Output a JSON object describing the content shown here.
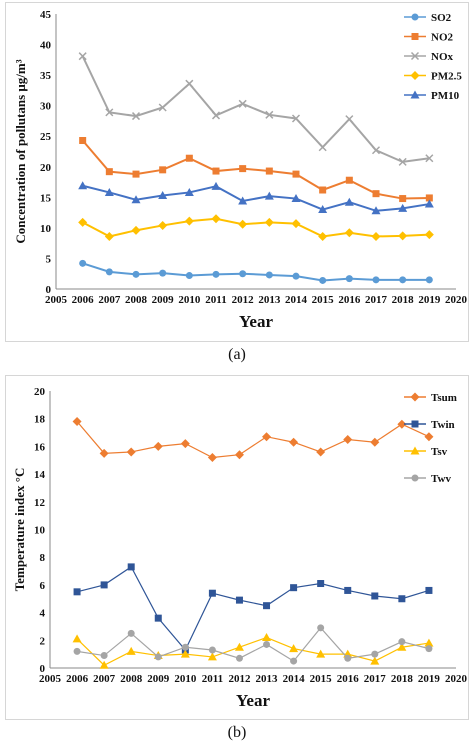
{
  "chart_data": [
    {
      "type": "line",
      "panel_label": "(a)",
      "xlabel": "Year",
      "ylabel": "Concentration of pollutans  μg/m³",
      "xlim": [
        2005,
        2020
      ],
      "ylim": [
        0,
        45
      ],
      "x_ticks": [
        2005,
        2006,
        2007,
        2008,
        2009,
        2010,
        2011,
        2012,
        2013,
        2014,
        2015,
        2016,
        2017,
        2018,
        2019,
        2020
      ],
      "y_ticks": [
        0,
        5,
        10,
        15,
        20,
        25,
        30,
        35,
        40,
        45
      ],
      "legend_position": "top-right",
      "grid": false,
      "x": [
        2006,
        2007,
        2008,
        2009,
        2010,
        2011,
        2012,
        2013,
        2014,
        2015,
        2016,
        2017,
        2018,
        2019
      ],
      "series": [
        {
          "name": "SO2",
          "color": "#5b9bd5",
          "marker": "circle",
          "values": [
            4.2,
            2.8,
            2.4,
            2.6,
            2.2,
            2.4,
            2.5,
            2.3,
            2.1,
            1.4,
            1.7,
            1.5,
            1.5,
            1.5
          ]
        },
        {
          "name": "NO2",
          "color": "#ed7d31",
          "marker": "square",
          "values": [
            24.3,
            19.2,
            18.8,
            19.5,
            21.4,
            19.3,
            19.7,
            19.3,
            18.8,
            16.2,
            17.8,
            15.6,
            14.8,
            14.9
          ]
        },
        {
          "name": "NOx",
          "color": "#a5a5a5",
          "marker": "x",
          "values": [
            38.1,
            28.9,
            28.3,
            29.7,
            33.6,
            28.4,
            30.3,
            28.5,
            27.9,
            23.2,
            27.8,
            22.7,
            20.8,
            21.4
          ]
        },
        {
          "name": "PM2.5",
          "color": "#ffc000",
          "marker": "diamond",
          "values": [
            10.9,
            8.6,
            9.6,
            10.4,
            11.1,
            11.5,
            10.6,
            10.9,
            10.7,
            8.6,
            9.2,
            8.6,
            8.7,
            8.9
          ]
        },
        {
          "name": "PM10",
          "color": "#4472c4",
          "marker": "triangle",
          "values": [
            16.9,
            15.8,
            14.6,
            15.3,
            15.8,
            16.8,
            14.4,
            15.2,
            14.8,
            13.0,
            14.2,
            12.8,
            13.2,
            13.9
          ]
        }
      ]
    },
    {
      "type": "line",
      "panel_label": "(b)",
      "xlabel": "Year",
      "ylabel": "Temperature index  °C",
      "xlim": [
        2005,
        2020
      ],
      "ylim": [
        0,
        20
      ],
      "x_ticks": [
        2005,
        2006,
        2007,
        2008,
        2009,
        2010,
        2011,
        2012,
        2013,
        2014,
        2015,
        2016,
        2017,
        2018,
        2019,
        2020
      ],
      "y_ticks": [
        0,
        2,
        4,
        6,
        8,
        10,
        12,
        14,
        16,
        18,
        20
      ],
      "legend_position": "top-right",
      "grid": false,
      "x": [
        2006,
        2007,
        2008,
        2009,
        2010,
        2011,
        2012,
        2013,
        2014,
        2015,
        2016,
        2017,
        2018,
        2019
      ],
      "series": [
        {
          "name": "Tsum",
          "color": "#ed7d31",
          "marker": "diamond",
          "values": [
            17.8,
            15.5,
            15.6,
            16.0,
            16.2,
            15.2,
            15.4,
            16.7,
            16.3,
            15.6,
            16.5,
            16.3,
            17.6,
            16.7
          ]
        },
        {
          "name": "Twin",
          "color": "#2f5597",
          "marker": "square",
          "values": [
            5.5,
            6.0,
            7.3,
            3.6,
            1.3,
            5.4,
            4.9,
            4.5,
            5.8,
            6.1,
            5.6,
            5.2,
            5.0,
            5.6
          ]
        },
        {
          "name": "Tsv",
          "color": "#ffc000",
          "marker": "triangle",
          "values": [
            2.1,
            0.2,
            1.2,
            0.9,
            1.0,
            0.8,
            1.5,
            2.2,
            1.4,
            1.0,
            1.0,
            0.5,
            1.5,
            1.8
          ]
        },
        {
          "name": "Twv",
          "color": "#a5a5a5",
          "marker": "circle",
          "values": [
            1.2,
            0.9,
            2.5,
            0.8,
            1.5,
            1.3,
            0.7,
            1.7,
            0.5,
            2.9,
            0.7,
            1.0,
            1.9,
            1.4
          ]
        }
      ]
    }
  ]
}
